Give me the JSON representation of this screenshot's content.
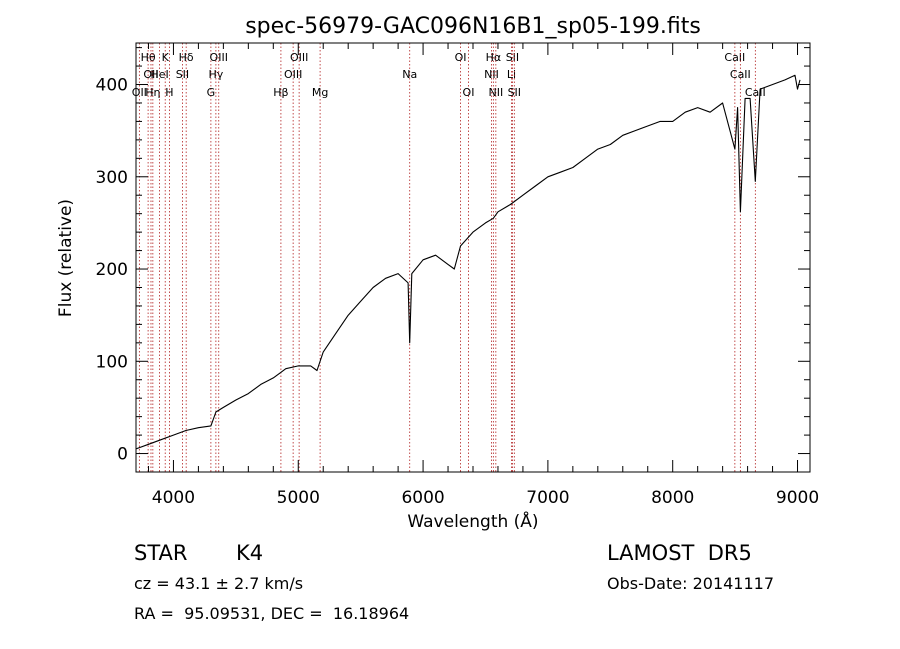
{
  "chart_data": {
    "type": "line",
    "title": "spec-56979-GAC096N16B1_sp05-199.fits",
    "xlabel": "Wavelength (Å)",
    "ylabel": "Flux (relative)",
    "xlim": [
      3700,
      9100
    ],
    "ylim": [
      -20,
      445
    ],
    "xticks": [
      4000,
      5000,
      6000,
      7000,
      8000,
      9000
    ],
    "yticks": [
      0,
      100,
      200,
      300,
      400
    ],
    "grid": false,
    "line_color": "#000000",
    "marker_color": "#b22222",
    "series": [
      {
        "x": [
          3700,
          3800,
          3900,
          4000,
          4100,
          4200,
          4300,
          4340,
          4400,
          4500,
          4600,
          4700,
          4800,
          4860,
          4900,
          5000,
          5100,
          5150,
          5200,
          5300,
          5400,
          5500,
          5600,
          5700,
          5800,
          5880,
          5893,
          5910,
          6000,
          6100,
          6200,
          6250,
          6300,
          6400,
          6500,
          6563,
          6600,
          6700,
          6800,
          6900,
          7000,
          7100,
          7200,
          7300,
          7400,
          7500,
          7600,
          7700,
          7800,
          7900,
          8000,
          8100,
          8200,
          8300,
          8400,
          8498,
          8520,
          8542,
          8580,
          8620,
          8662,
          8700,
          8800,
          8900,
          8980,
          9000,
          9020
        ],
        "y": [
          5,
          10,
          15,
          20,
          25,
          28,
          30,
          45,
          50,
          58,
          65,
          75,
          82,
          88,
          92,
          95,
          95,
          90,
          110,
          130,
          150,
          165,
          180,
          190,
          195,
          185,
          120,
          195,
          210,
          215,
          205,
          200,
          225,
          240,
          250,
          255,
          262,
          270,
          280,
          290,
          300,
          305,
          310,
          320,
          330,
          335,
          345,
          350,
          355,
          360,
          360,
          370,
          375,
          370,
          380,
          330,
          375,
          262,
          385,
          385,
          295,
          395,
          400,
          405,
          410,
          395,
          405
        ]
      }
    ],
    "line_markers": [
      {
        "x": 3727,
        "label": "OII",
        "row": 2
      },
      {
        "x": 3797,
        "label": "Hθ",
        "row": 0
      },
      {
        "x": 3820,
        "label": "OII",
        "row": 1
      },
      {
        "x": 3835,
        "label": "Hη",
        "row": 2
      },
      {
        "x": 3889,
        "label": "HeI",
        "row": 1
      },
      {
        "x": 3934,
        "label": "K",
        "row": 0
      },
      {
        "x": 3968,
        "label": "H",
        "row": 2
      },
      {
        "x": 4072,
        "label": "SII",
        "row": 1
      },
      {
        "x": 4102,
        "label": "Hδ",
        "row": 0
      },
      {
        "x": 4300,
        "label": "G",
        "row": 2
      },
      {
        "x": 4340,
        "label": "Hγ",
        "row": 1
      },
      {
        "x": 4363,
        "label": "OIII",
        "row": 0
      },
      {
        "x": 4861,
        "label": "Hβ",
        "row": 2
      },
      {
        "x": 4959,
        "label": "OIII",
        "row": 1
      },
      {
        "x": 5007,
        "label": "OIII",
        "row": 0
      },
      {
        "x": 5175,
        "label": "Mg",
        "row": 2
      },
      {
        "x": 5893,
        "label": "Na",
        "row": 1
      },
      {
        "x": 6300,
        "label": "OI",
        "row": 0
      },
      {
        "x": 6364,
        "label": "OI",
        "row": 2
      },
      {
        "x": 6548,
        "label": "NII",
        "row": 1
      },
      {
        "x": 6563,
        "label": "Hα",
        "row": 0
      },
      {
        "x": 6583,
        "label": "NII",
        "row": 2
      },
      {
        "x": 6708,
        "label": "Li",
        "row": 1
      },
      {
        "x": 6716,
        "label": "SII",
        "row": 0
      },
      {
        "x": 6731,
        "label": "SII",
        "row": 2
      },
      {
        "x": 8498,
        "label": "CaII",
        "row": 0
      },
      {
        "x": 8542,
        "label": "CaII",
        "row": 1
      },
      {
        "x": 8662,
        "label": "CaII",
        "row": 2
      }
    ]
  },
  "footer": {
    "class_label": "STAR",
    "subclass": "K4",
    "survey": "LAMOST  DR5",
    "redshift": "cz = 43.1 ± 2.7 km/s",
    "obs_date": "Obs-Date: 20141117",
    "coords": "RA =  95.09531, DEC =  16.18964"
  }
}
